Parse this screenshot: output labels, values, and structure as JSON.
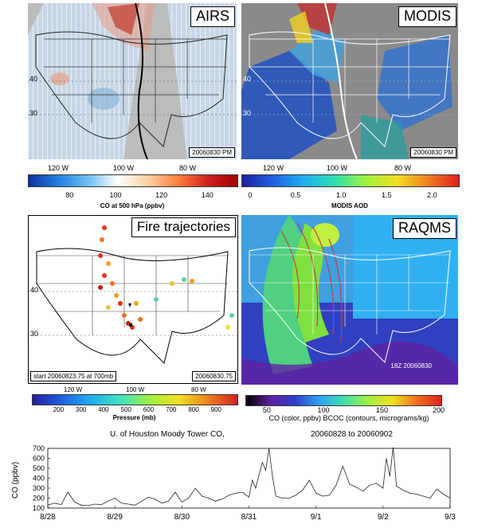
{
  "panels": {
    "airs": {
      "label": "AIRS",
      "stamp": "20060830 PM",
      "lon_labels": [
        "120 W",
        "100 W",
        "80 W"
      ],
      "lat_labels": [
        "40",
        "30"
      ],
      "colorbar": {
        "ticks": [
          "80",
          "100",
          "120",
          "140"
        ],
        "title": "CO at 500 hPa (ppbv)"
      }
    },
    "modis": {
      "label": "MODIS",
      "stamp": "20060830 PM",
      "lon_labels": [
        "120 W",
        "100 W",
        "80 W"
      ],
      "lat_labels": [
        "40",
        "30"
      ],
      "colorbar": {
        "ticks": [
          "0",
          "0.5",
          "1.0",
          "1.5",
          "2.0"
        ],
        "title": "MODIS AOD"
      }
    },
    "fire": {
      "label": "Fire trajectories",
      "stamp_left": "start 20060823.75 at 700mb",
      "stamp_right": "20060830.75",
      "lon_labels": [
        "120 W",
        "100 W",
        "80 W"
      ],
      "lat_labels": [
        "40",
        "30"
      ],
      "colorbar": {
        "ticks": [
          "200",
          "300",
          "400",
          "500",
          "600",
          "700",
          "800",
          "900"
        ],
        "title": "Pressure (mb)"
      }
    },
    "raqms": {
      "label": "RAQMS",
      "stamp": "18Z 20060830",
      "colorbar": {
        "ticks": [
          "50",
          "100",
          "150",
          "200"
        ],
        "title": "CO (color, ppbv) BCOC (contours, micrograms/kg)"
      }
    }
  },
  "chart_data": {
    "type": "line",
    "title_left": "U. of Houston Moody Tower CO,",
    "title_right": "20060828 to 20060902",
    "ylabel": "CO (ppbv)",
    "ylim": [
      100,
      700
    ],
    "yticks": [
      100,
      200,
      300,
      400,
      500,
      600,
      700
    ],
    "categories": [
      "8/28",
      "8/29",
      "8/30",
      "8/31",
      "9/1",
      "9/2",
      "9/3"
    ],
    "xlim": [
      0,
      6
    ],
    "series": [
      {
        "x": [
          0.0,
          0.1,
          0.2,
          0.3,
          0.4,
          0.5,
          0.6,
          0.7,
          0.8,
          0.9,
          1.0,
          1.1,
          1.2,
          1.3,
          1.4,
          1.5,
          1.6,
          1.7,
          1.8,
          1.9,
          2.0,
          2.1,
          2.2,
          2.3,
          2.4,
          2.5,
          2.6,
          2.7,
          2.8,
          2.9,
          3.0,
          3.05,
          3.1,
          3.2,
          3.25,
          3.3,
          3.35,
          3.4,
          3.5,
          3.6,
          3.7,
          3.8,
          3.9,
          4.0,
          4.1,
          4.2,
          4.3,
          4.4,
          4.5,
          4.6,
          4.7,
          4.8,
          4.9,
          5.0,
          5.05,
          5.1,
          5.15,
          5.2,
          5.3,
          5.4,
          5.5,
          5.6,
          5.7,
          5.8,
          5.9,
          6.0
        ],
        "values": [
          130,
          150,
          135,
          260,
          160,
          130,
          125,
          140,
          135,
          170,
          200,
          150,
          140,
          130,
          170,
          210,
          190,
          150,
          170,
          260,
          160,
          200,
          300,
          220,
          200,
          170,
          190,
          230,
          250,
          260,
          210,
          380,
          300,
          560,
          480,
          700,
          420,
          220,
          200,
          200,
          230,
          280,
          380,
          250,
          220,
          230,
          330,
          520,
          340,
          310,
          270,
          330,
          350,
          300,
          600,
          420,
          710,
          320,
          280,
          250,
          240,
          220,
          200,
          290,
          240,
          200
        ]
      }
    ]
  }
}
